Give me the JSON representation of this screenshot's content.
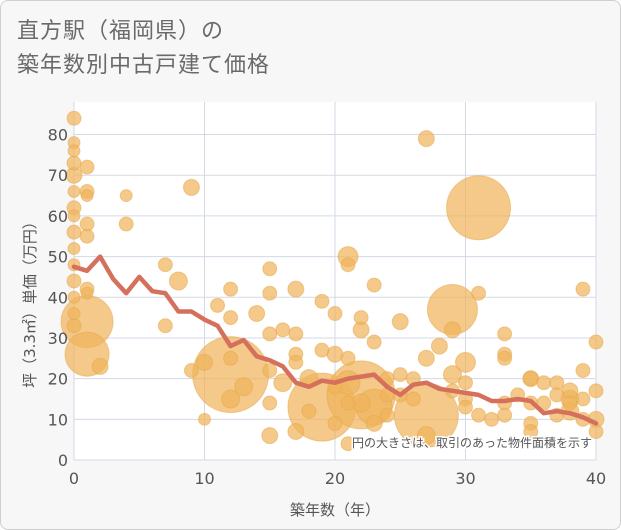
{
  "title_line1": "直方駅（福岡県）の",
  "title_line2": "築年数別中古戸建て価格",
  "chart_data": {
    "type": "scatter",
    "xlabel": "築年数（年）",
    "ylabel": "坪（3.3㎡）単価（万円）",
    "xlim": [
      0,
      40
    ],
    "ylim": [
      0,
      88
    ],
    "x_ticks": [
      0,
      10,
      20,
      30,
      40
    ],
    "y_ticks": [
      0,
      10,
      20,
      30,
      40,
      50,
      60,
      70,
      80
    ],
    "grid": true,
    "annotation": "円の大きさは、取引のあった物件面積を示す",
    "colors": {
      "bubble": "#f0b45c",
      "bubble_edge": "#e6a54a",
      "line": "#d4705b",
      "grid": "#d3dae6",
      "plot_bg": "#ffffff",
      "axis_text": "#555555"
    },
    "series": [
      {
        "type": "line",
        "x": [
          0,
          1,
          2,
          3,
          4,
          5,
          6,
          7,
          8,
          9,
          10,
          11,
          12,
          13,
          14,
          15,
          16,
          17,
          18,
          19,
          20,
          21,
          22,
          23,
          24,
          25,
          26,
          27,
          28,
          29,
          30,
          31,
          32,
          33,
          34,
          35,
          36,
          37,
          38,
          39,
          40
        ],
        "y": [
          47.5,
          46.5,
          50,
          44.5,
          41,
          45,
          41.5,
          41,
          36.5,
          36.5,
          34.5,
          33,
          28,
          29.5,
          25.5,
          24.5,
          23,
          19,
          18,
          19.5,
          19,
          20,
          20.5,
          21,
          18,
          16,
          18.5,
          19,
          17.5,
          17,
          16.5,
          16,
          14.5,
          14.5,
          15,
          14.5,
          11.5,
          12,
          11.5,
          10.5,
          9
        ]
      },
      {
        "type": "bubble",
        "points": [
          [
            0,
            84,
            7
          ],
          [
            0,
            78,
            6
          ],
          [
            0,
            76,
            6
          ],
          [
            0,
            73,
            7
          ],
          [
            0,
            70,
            8
          ],
          [
            0,
            66,
            6
          ],
          [
            0,
            62,
            7
          ],
          [
            0,
            60,
            6
          ],
          [
            0,
            56,
            7
          ],
          [
            0,
            52,
            6
          ],
          [
            0,
            48,
            6
          ],
          [
            0,
            44,
            7
          ],
          [
            0,
            40,
            6
          ],
          [
            0,
            36,
            6
          ],
          [
            0,
            33,
            7
          ],
          [
            1,
            72,
            7
          ],
          [
            1,
            66,
            7
          ],
          [
            1,
            65,
            6
          ],
          [
            1,
            58,
            7
          ],
          [
            1,
            55,
            7
          ],
          [
            1,
            42,
            7
          ],
          [
            1,
            41,
            6
          ],
          [
            1,
            34,
            26
          ],
          [
            1,
            26,
            22
          ],
          [
            2,
            23,
            8
          ],
          [
            4,
            65,
            6
          ],
          [
            4,
            58,
            7
          ],
          [
            7,
            48,
            7
          ],
          [
            7,
            33,
            7
          ],
          [
            8,
            44,
            9
          ],
          [
            9,
            67,
            8
          ],
          [
            9,
            22,
            7
          ],
          [
            10,
            24,
            8
          ],
          [
            10,
            10,
            6
          ],
          [
            11,
            38,
            7
          ],
          [
            12,
            42,
            7
          ],
          [
            12,
            35,
            7
          ],
          [
            12,
            25,
            7
          ],
          [
            12,
            21,
            38
          ],
          [
            12,
            15,
            9
          ],
          [
            13,
            18,
            9
          ],
          [
            14,
            36,
            8
          ],
          [
            15,
            47,
            7
          ],
          [
            15,
            41,
            7
          ],
          [
            15,
            31,
            7
          ],
          [
            15,
            22,
            7
          ],
          [
            15,
            14,
            7
          ],
          [
            15,
            6,
            8
          ],
          [
            16,
            32,
            7
          ],
          [
            16,
            19,
            9
          ],
          [
            17,
            42,
            8
          ],
          [
            17,
            31,
            7
          ],
          [
            17,
            26,
            7
          ],
          [
            17,
            24,
            7
          ],
          [
            17,
            7,
            8
          ],
          [
            18,
            20,
            9
          ],
          [
            18,
            12,
            7
          ],
          [
            19,
            39,
            7
          ],
          [
            19,
            27,
            7
          ],
          [
            19,
            13,
            34
          ],
          [
            20,
            36,
            7
          ],
          [
            20,
            26,
            8
          ],
          [
            20,
            18,
            7
          ],
          [
            20,
            9,
            7
          ],
          [
            21,
            50,
            10
          ],
          [
            21,
            48,
            7
          ],
          [
            21,
            25,
            7
          ],
          [
            21,
            19,
            12
          ],
          [
            21,
            14,
            7
          ],
          [
            21,
            4,
            7
          ],
          [
            22,
            35,
            7
          ],
          [
            22,
            32,
            8
          ],
          [
            22,
            16,
            34
          ],
          [
            22,
            14,
            9
          ],
          [
            23,
            43,
            7
          ],
          [
            23,
            29,
            7
          ],
          [
            23,
            13,
            18
          ],
          [
            23,
            9,
            8
          ],
          [
            24,
            20,
            7
          ],
          [
            24,
            16,
            7
          ],
          [
            24,
            11,
            7
          ],
          [
            25,
            34,
            8
          ],
          [
            25,
            21,
            7
          ],
          [
            25,
            16,
            7
          ],
          [
            26,
            20,
            7
          ],
          [
            26,
            15,
            7
          ],
          [
            27,
            79,
            8
          ],
          [
            27,
            25,
            8
          ],
          [
            27,
            11,
            32
          ],
          [
            27,
            6,
            9
          ],
          [
            28,
            28,
            8
          ],
          [
            29,
            37,
            25
          ],
          [
            29,
            32,
            8
          ],
          [
            29,
            21,
            9
          ],
          [
            29,
            17,
            7
          ],
          [
            30,
            24,
            10
          ],
          [
            30,
            19,
            7
          ],
          [
            30,
            15,
            7
          ],
          [
            30,
            13,
            7
          ],
          [
            31,
            62,
            32
          ],
          [
            31,
            41,
            7
          ],
          [
            31,
            11,
            7
          ],
          [
            32,
            10,
            7
          ],
          [
            33,
            31,
            7
          ],
          [
            33,
            26,
            7
          ],
          [
            33,
            25,
            7
          ],
          [
            33,
            14,
            7
          ],
          [
            33,
            11,
            7
          ],
          [
            34,
            16,
            7
          ],
          [
            35,
            20,
            8
          ],
          [
            35,
            20,
            7
          ],
          [
            35,
            14,
            7
          ],
          [
            35,
            9,
            7
          ],
          [
            35,
            7,
            7
          ],
          [
            36,
            19,
            7
          ],
          [
            36,
            14,
            7
          ],
          [
            37,
            19,
            7
          ],
          [
            37,
            16,
            7
          ],
          [
            37,
            11,
            7
          ],
          [
            38,
            17,
            8
          ],
          [
            38,
            15,
            9
          ],
          [
            38,
            14,
            7
          ],
          [
            38,
            12,
            9
          ],
          [
            39,
            42,
            7
          ],
          [
            39,
            22,
            7
          ],
          [
            39,
            15,
            7
          ],
          [
            39,
            10,
            7
          ],
          [
            40,
            29,
            7
          ],
          [
            40,
            17,
            7
          ],
          [
            40,
            10,
            8
          ],
          [
            40,
            7,
            7
          ]
        ]
      }
    ]
  }
}
